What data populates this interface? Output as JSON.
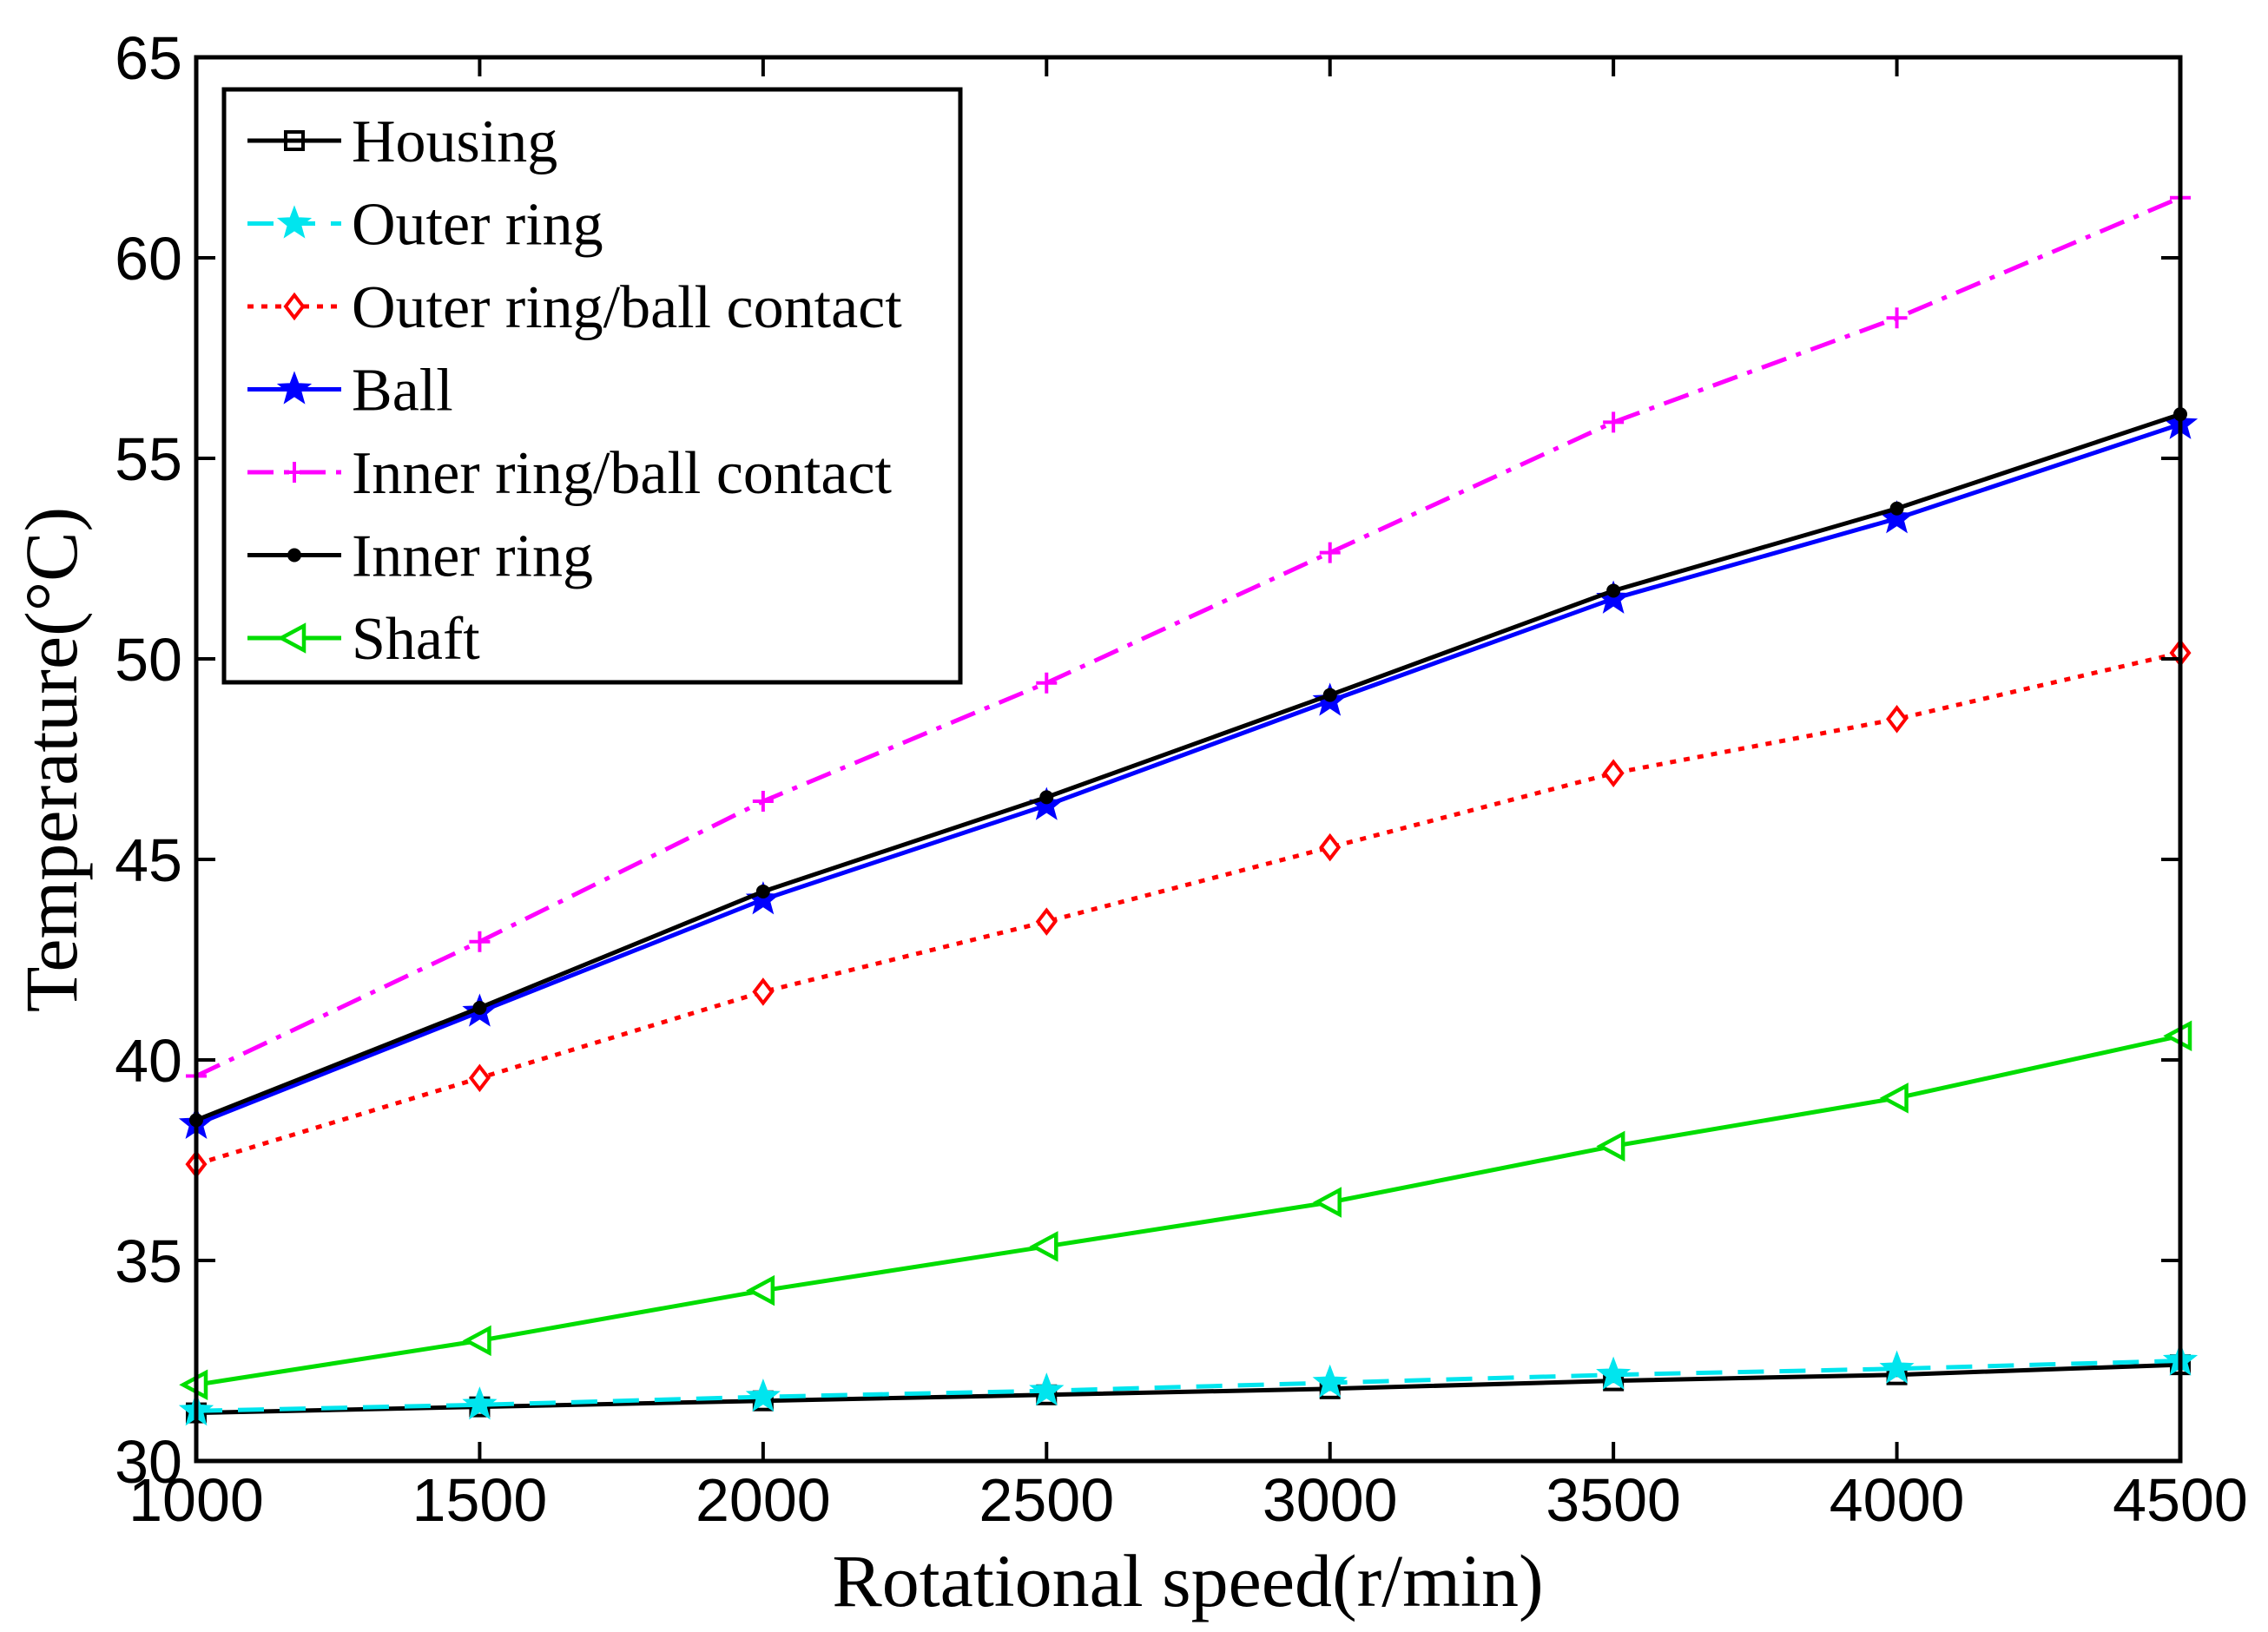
{
  "chart_data": {
    "type": "line",
    "title": "",
    "xlabel": "Rotational speed(r/min)",
    "ylabel": "Temperature(°C)",
    "x": [
      1000,
      1500,
      2000,
      2500,
      3000,
      3500,
      4000,
      4500
    ],
    "xlim": [
      1000,
      4500
    ],
    "ylim": [
      30,
      65
    ],
    "xticks": [
      1000,
      1500,
      2000,
      2500,
      3000,
      3500,
      4000,
      4500
    ],
    "yticks": [
      30,
      35,
      40,
      45,
      50,
      55,
      60,
      65
    ],
    "xtick_labels": [
      "1000",
      "1500",
      "2000",
      "2500",
      "3000",
      "3500",
      "4000",
      "4500"
    ],
    "ytick_labels": [
      "30",
      "35",
      "40",
      "45",
      "50",
      "55",
      "60",
      "65"
    ],
    "grid": false,
    "legend_position": "top-left",
    "series": [
      {
        "name": "Housing",
        "color": "#000000",
        "line_style": "solid",
        "marker": "square",
        "values": [
          31.2,
          31.35,
          31.5,
          31.65,
          31.8,
          32.0,
          32.15,
          32.4
        ]
      },
      {
        "name": "Outer ring",
        "color": "#00e5ee",
        "line_style": "dashed",
        "marker": "star",
        "values": [
          31.25,
          31.4,
          31.6,
          31.75,
          31.95,
          32.15,
          32.3,
          32.5
        ]
      },
      {
        "name": "Outer ring/ball contact",
        "color": "#ff0000",
        "line_style": "dotted",
        "marker": "diamond",
        "values": [
          37.4,
          39.55,
          41.7,
          43.45,
          45.3,
          47.15,
          48.5,
          50.15
        ]
      },
      {
        "name": "Ball",
        "color": "#0000ff",
        "line_style": "solid",
        "marker": "star",
        "values": [
          38.4,
          41.2,
          44.0,
          46.35,
          48.95,
          51.5,
          53.5,
          55.85
        ]
      },
      {
        "name": "Inner ring/ball contact",
        "color": "#ff00ff",
        "line_style": "dashdot",
        "marker": "plus",
        "values": [
          39.6,
          42.95,
          46.45,
          49.4,
          52.65,
          55.9,
          58.5,
          61.5
        ]
      },
      {
        "name": "Inner ring",
        "color": "#000000",
        "line_style": "solid",
        "marker": "dot",
        "values": [
          38.5,
          41.3,
          44.2,
          46.55,
          49.1,
          51.7,
          53.75,
          56.1
        ]
      },
      {
        "name": "Shaft",
        "color": "#00dd00",
        "line_style": "solid",
        "marker": "triangle-left",
        "values": [
          31.9,
          33.0,
          34.25,
          35.35,
          36.45,
          37.85,
          39.05,
          40.6
        ]
      }
    ]
  }
}
